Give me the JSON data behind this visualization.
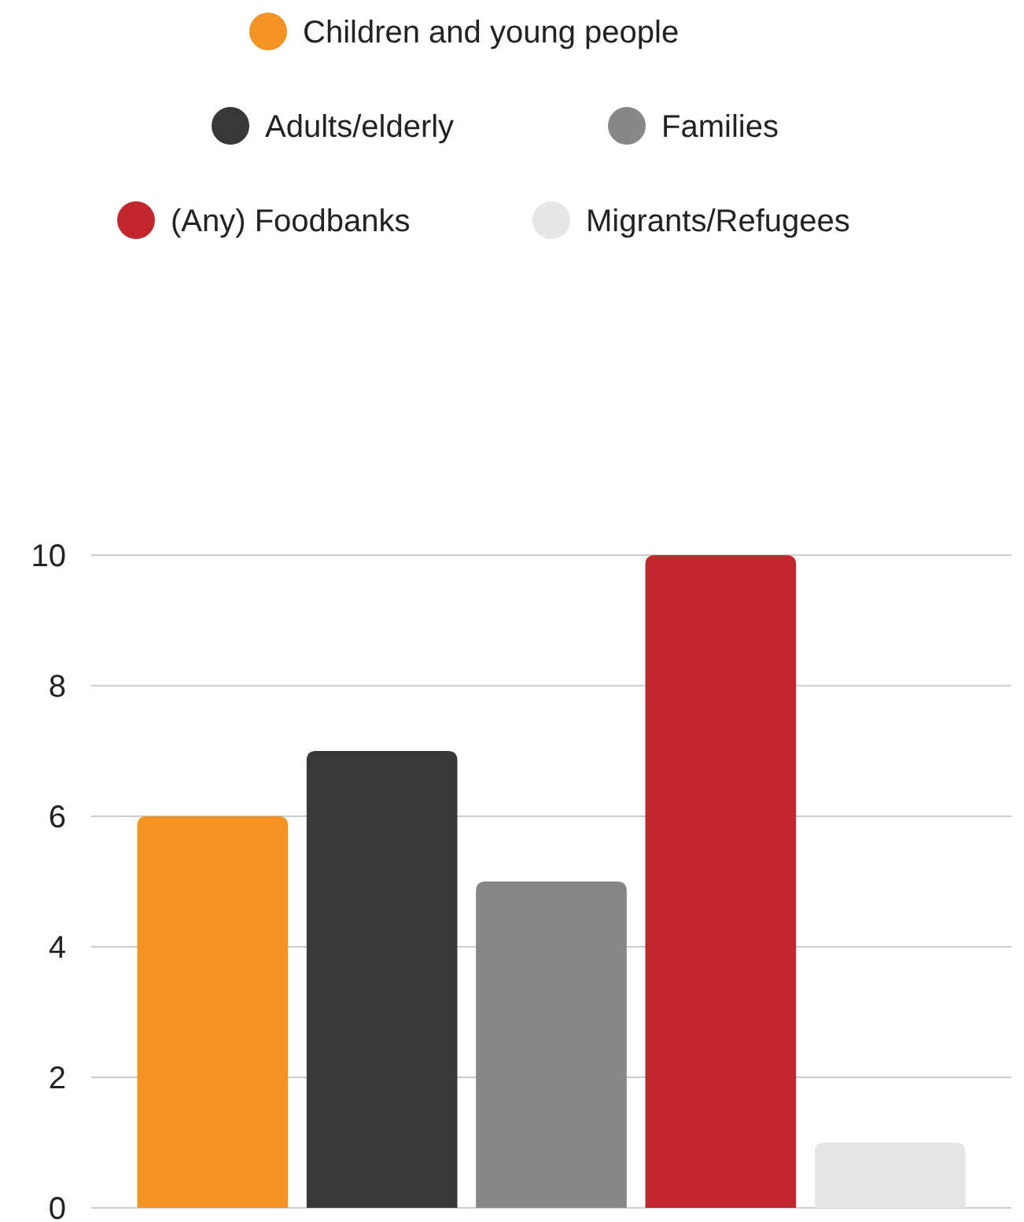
{
  "chart_data": {
    "type": "bar",
    "categories": [
      null
    ],
    "series": [
      {
        "name": "Children and young people",
        "color": "#f39321",
        "values": [
          6
        ]
      },
      {
        "name": "Adults/elderly",
        "color": "#383838",
        "values": [
          7
        ]
      },
      {
        "name": "Families",
        "color": "#878787",
        "values": [
          5
        ]
      },
      {
        "name": "(Any) Foodbanks",
        "color": "#c1272d",
        "values": [
          10
        ]
      },
      {
        "name": "Migrants/Refugees",
        "color": "#e6e6e8",
        "values": [
          1
        ]
      }
    ],
    "ylim": [
      0,
      10
    ],
    "yticks": [
      0,
      2,
      4,
      6,
      8,
      10
    ],
    "grid": "y",
    "legend": "top"
  }
}
